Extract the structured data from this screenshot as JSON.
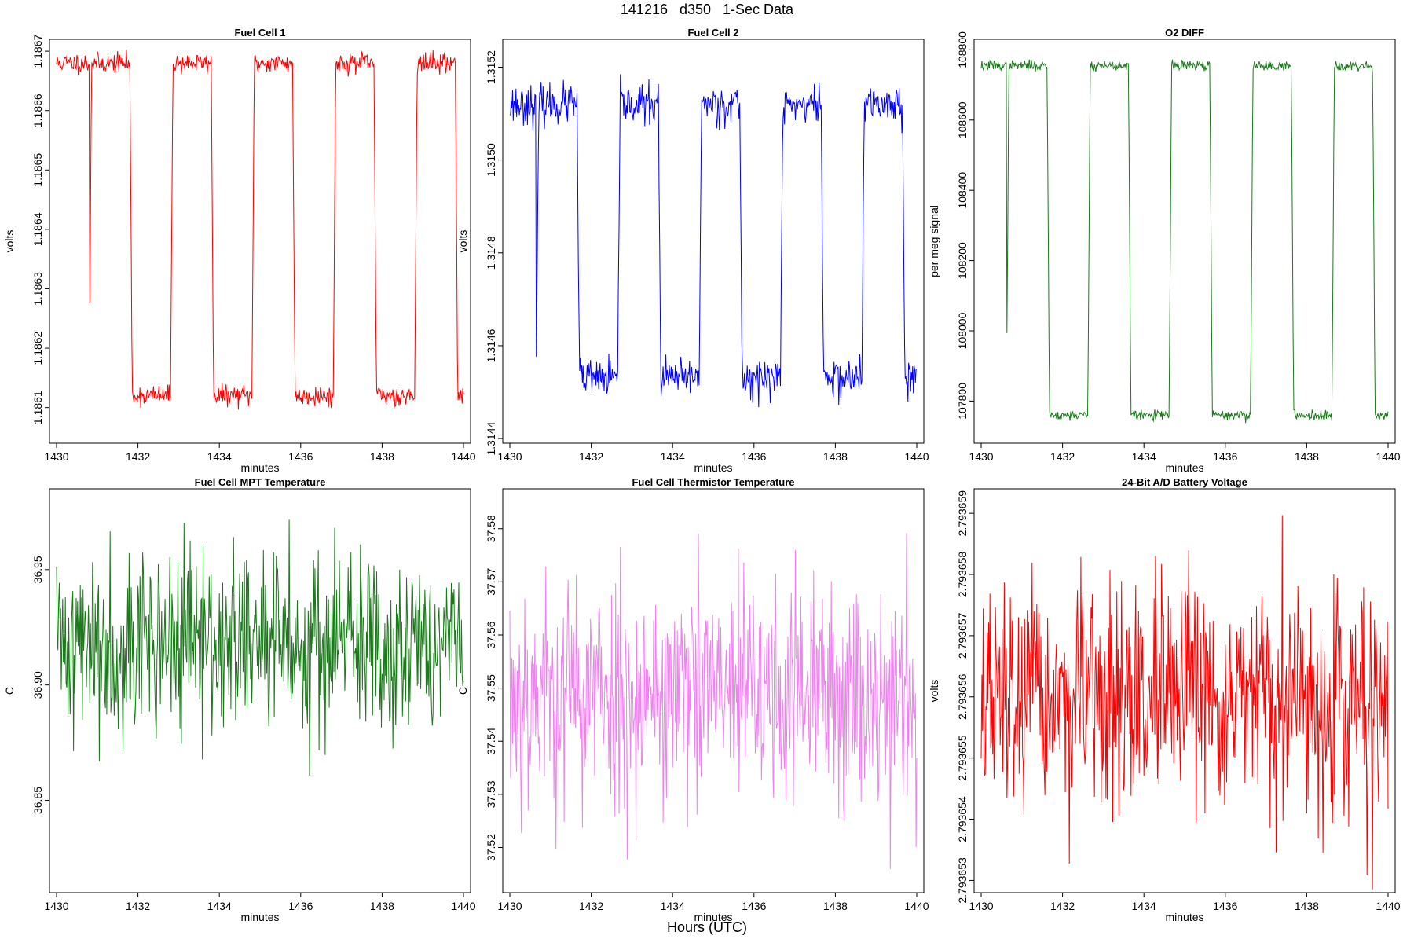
{
  "header": {
    "title": "141216   d350   1-Sec Data"
  },
  "footer": {
    "xlabel": "Hours (UTC)"
  },
  "chart_data": [
    {
      "type": "line",
      "title": "Fuel Cell 1",
      "xlabel": "minutes",
      "ylabel": "volts",
      "color": "#ff0000",
      "xlim": [
        1430,
        1440
      ],
      "ylim": [
        1.18604,
        1.18672
      ],
      "xticks": [
        1430,
        1432,
        1434,
        1436,
        1438,
        1440
      ],
      "xtick_labels": [
        "1430",
        "1432",
        "1434",
        "1436",
        "1438",
        "1440"
      ],
      "yticks": [
        1.1861,
        1.1862,
        1.1863,
        1.1864,
        1.1865,
        1.1866,
        1.1867
      ],
      "ytick_labels": [
        "1.1861",
        "1.1862",
        "1.1863",
        "1.1864",
        "1.1865",
        "1.1866",
        "1.1867"
      ],
      "series": [
        {
          "pattern": "square",
          "start": 1430,
          "end": 1440,
          "high_level": 1.18668,
          "low_level": 1.18612,
          "noise": 1.4e-05,
          "period": 2.0,
          "phase": 0.8,
          "seed": 11
        }
      ]
    },
    {
      "type": "line",
      "title": "Fuel Cell 2",
      "xlabel": "minutes",
      "ylabel": "volts",
      "color": "#0000ff",
      "xlim": [
        1430,
        1440
      ],
      "ylim": [
        1.31439,
        1.31526
      ],
      "xticks": [
        1430,
        1432,
        1434,
        1436,
        1438,
        1440
      ],
      "xtick_labels": [
        "1430",
        "1432",
        "1434",
        "1436",
        "1438",
        "1440"
      ],
      "yticks": [
        1.3144,
        1.3146,
        1.3148,
        1.315,
        1.3152
      ],
      "ytick_labels": [
        "1.3144",
        "1.3146",
        "1.3148",
        "1.3150",
        "1.3152"
      ],
      "series": [
        {
          "pattern": "square",
          "start": 1430,
          "end": 1440,
          "high_level": 1.31512,
          "low_level": 1.31453,
          "noise": 3.5e-05,
          "period": 2.0,
          "phase": 0.65,
          "seed": 23
        }
      ]
    },
    {
      "type": "line",
      "title": "O2 DIFF",
      "xlabel": "minutes",
      "ylabel": "per meg signal",
      "color": "#1a7a1a",
      "xlim": [
        1430,
        1440
      ],
      "ylim": [
        107680,
        108830
      ],
      "xticks": [
        1430,
        1432,
        1434,
        1436,
        1438,
        1440
      ],
      "xtick_labels": [
        "1430",
        "1432",
        "1434",
        "1436",
        "1438",
        "1440"
      ],
      "yticks": [
        107800,
        108000,
        108200,
        108400,
        108600,
        108800
      ],
      "ytick_labels": [
        "107800",
        "108000",
        "108200",
        "108400",
        "108600",
        "108800"
      ],
      "series": [
        {
          "pattern": "square",
          "start": 1430,
          "end": 1440,
          "high_level": 108755,
          "low_level": 107760,
          "noise": 12,
          "period": 2.0,
          "phase": 0.62,
          "seed": 37
        }
      ]
    },
    {
      "type": "line",
      "title": "Fuel Cell MPT Temperature",
      "xlabel": "minutes",
      "ylabel": "C",
      "color": "#1a7a1a",
      "xlim": [
        1430,
        1440
      ],
      "ylim": [
        36.81,
        36.985
      ],
      "xticks": [
        1430,
        1432,
        1434,
        1436,
        1438,
        1440
      ],
      "xtick_labels": [
        "1430",
        "1432",
        "1434",
        "1436",
        "1438",
        "1440"
      ],
      "yticks": [
        36.85,
        36.9,
        36.95
      ],
      "ytick_labels": [
        "36.85",
        "36.90",
        "36.95"
      ],
      "series": [
        {
          "pattern": "noise",
          "start": 1430,
          "end": 1440,
          "mean": 36.918,
          "noise": 0.02,
          "seed": 41
        }
      ]
    },
    {
      "type": "line",
      "title": "Fuel Cell Thermistor Temperature",
      "xlabel": "minutes",
      "ylabel": "C",
      "color": "#ee82ee",
      "xlim": [
        1430,
        1440
      ],
      "ylim": [
        37.5115,
        37.5875
      ],
      "xticks": [
        1430,
        1432,
        1434,
        1436,
        1438,
        1440
      ],
      "xtick_labels": [
        "1430",
        "1432",
        "1434",
        "1436",
        "1438",
        "1440"
      ],
      "yticks": [
        37.52,
        37.53,
        37.54,
        37.55,
        37.56,
        37.57,
        37.58
      ],
      "ytick_labels": [
        "37.52",
        "37.53",
        "37.54",
        "37.55",
        "37.56",
        "37.57",
        "37.58"
      ],
      "series": [
        {
          "pattern": "noise",
          "start": 1430,
          "end": 1440,
          "mean": 37.549,
          "noise": 0.011,
          "seed": 53
        }
      ]
    },
    {
      "type": "line",
      "title": "24-Bit A/D Battery Voltage",
      "xlabel": "minutes",
      "ylabel": "volts",
      "color": "#ff0000",
      "xlim": [
        1430,
        1440
      ],
      "ylim": [
        2.7936528,
        2.7936594
      ],
      "xticks": [
        1430,
        1432,
        1434,
        1436,
        1438,
        1440
      ],
      "xtick_labels": [
        "1430",
        "1432",
        "1434",
        "1436",
        "1438",
        "1440"
      ],
      "yticks": [
        2.793653,
        2.793654,
        2.793655,
        2.793656,
        2.793657,
        2.793658,
        2.793659
      ],
      "ytick_labels": [
        "2.793653",
        "2.793654",
        "2.793655",
        "2.793656",
        "2.793657",
        "2.793658",
        "2.793659"
      ],
      "series": [
        {
          "pattern": "noise",
          "start": 1430,
          "end": 1440,
          "mean": 2.7936559,
          "noise": 9e-07,
          "seed": 67
        }
      ]
    }
  ]
}
